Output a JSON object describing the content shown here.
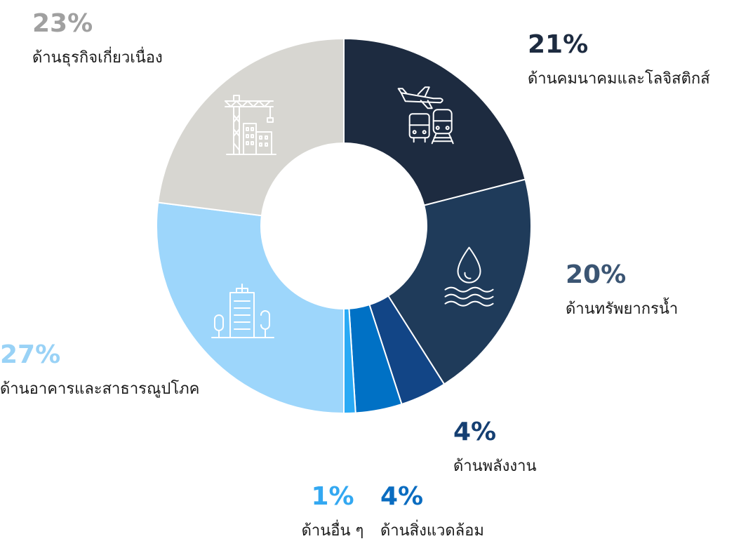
{
  "chart_data": {
    "type": "pie",
    "title": "",
    "slices": [
      {
        "name": "ด้านคมนาคมและโลจิสติกส์",
        "value": 21,
        "label": "21%",
        "color": "#1d2b40",
        "icon": "transport-icon"
      },
      {
        "name": "ด้านทรัพยากรน้ำ",
        "value": 20,
        "label": "20%",
        "color": "#1f3b5a",
        "icon": "water-drop-icon"
      },
      {
        "name": "ด้านพลังงาน",
        "value": 4,
        "label": "4%",
        "color": "#124586"
      },
      {
        "name": "ด้านสิ่งแวดล้อม",
        "value": 4,
        "label": "4%",
        "color": "#0071c5"
      },
      {
        "name": "ด้านอื่น ๆ",
        "value": 1,
        "label": "1%",
        "color": "#2aaaf5"
      },
      {
        "name": "ด้านอาคารและสาธารณูปโภค",
        "value": 27,
        "label": "27%",
        "color": "#9dd6fb",
        "icon": "building-icon"
      },
      {
        "name": "ด้านธุรกิจเกี่ยวเนื่อง",
        "value": 23,
        "label": "23%",
        "color": "#d7d6d1",
        "icon": "construction-crane-icon"
      }
    ],
    "label_colors": [
      "#1d2b40",
      "#3b5573",
      "#153f72",
      "#0a6cc0",
      "#33a8f1",
      "#99d2f6",
      "#a0a0a0"
    ],
    "donut": true
  }
}
